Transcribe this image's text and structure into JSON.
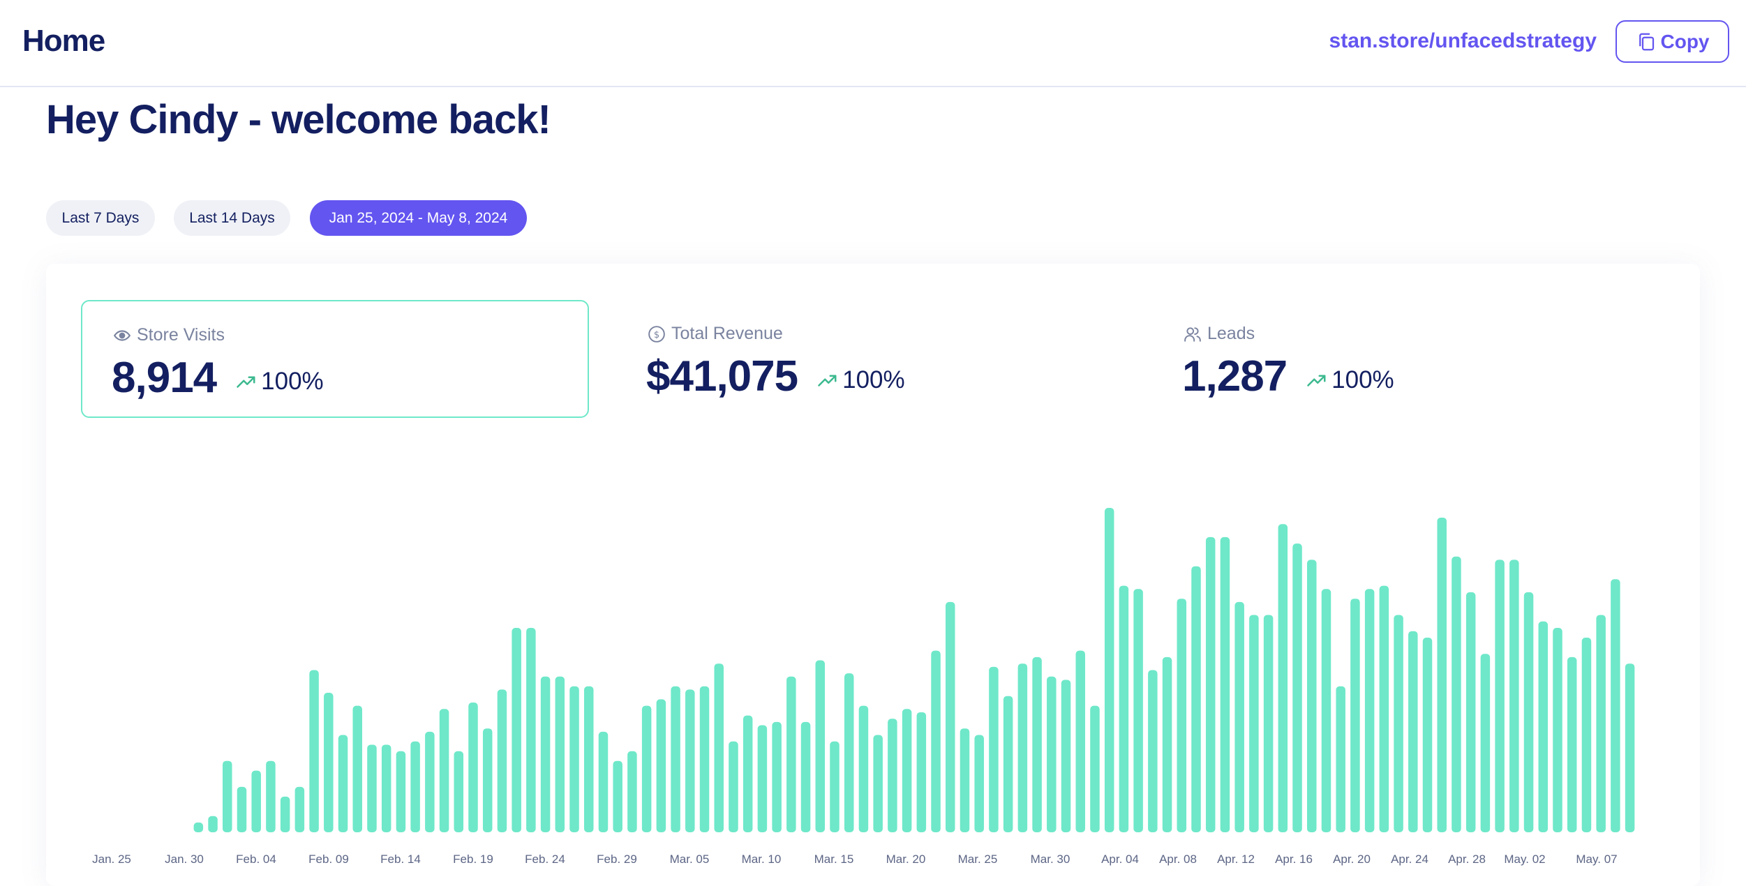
{
  "header": {
    "title": "Home",
    "store_link": "stan.store/unfacedstrategy",
    "copy_label": "Copy"
  },
  "welcome": "Hey Cindy - welcome back!",
  "filters": {
    "last7": "Last 7 Days",
    "last14": "Last 14 Days",
    "range": "Jan 25, 2024 - May 8, 2024"
  },
  "stats": {
    "visits": {
      "label": "Store Visits",
      "value": "8,914",
      "change": "100%"
    },
    "revenue": {
      "label": "Total Revenue",
      "value": "$41,075",
      "change": "100%"
    },
    "leads": {
      "label": "Leads",
      "value": "1,287",
      "change": "100%"
    }
  },
  "colors": {
    "accent": "#6355f0",
    "bar": "#6ee8c9",
    "navy": "#131f60",
    "muted": "#7a839f"
  },
  "chart_data": {
    "type": "bar",
    "title": "Store Visits",
    "xlabel": "",
    "ylabel": "",
    "ylim": [
      0,
      100
    ],
    "tick_labels": [
      "Jan. 25",
      "Jan. 30",
      "Feb. 04",
      "Feb. 09",
      "Feb. 14",
      "Feb. 19",
      "Feb. 24",
      "Feb. 29",
      "Mar. 05",
      "Mar. 10",
      "Mar. 15",
      "Mar. 20",
      "Mar. 25",
      "Mar. 30",
      "Apr. 04",
      "Apr. 08",
      "Apr. 12",
      "Apr. 16",
      "Apr. 20",
      "Apr. 24",
      "Apr. 28",
      "May. 02",
      "May. 07"
    ],
    "values": [
      0,
      0,
      0,
      0,
      0,
      0,
      3,
      5,
      22,
      14,
      19,
      22,
      11,
      14,
      50,
      43,
      30,
      39,
      27,
      27,
      25,
      28,
      31,
      38,
      25,
      40,
      32,
      44,
      63,
      63,
      48,
      48,
      45,
      45,
      31,
      22,
      25,
      39,
      41,
      45,
      44,
      45,
      52,
      28,
      36,
      33,
      34,
      48,
      34,
      53,
      28,
      49,
      39,
      30,
      35,
      38,
      37,
      56,
      71,
      32,
      30,
      51,
      42,
      52,
      54,
      48,
      47,
      56,
      39,
      100,
      76,
      75,
      50,
      54,
      72,
      82,
      91,
      91,
      71,
      67,
      67,
      95,
      89,
      84,
      75,
      45,
      72,
      75,
      76,
      67,
      62,
      60,
      97,
      85,
      74,
      55,
      84,
      84,
      74,
      65,
      63,
      54,
      60,
      67,
      78,
      52
    ]
  }
}
